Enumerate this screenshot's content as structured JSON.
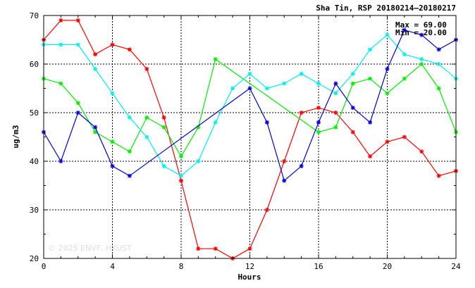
{
  "chart_data": {
    "type": "line",
    "title": "Sha Tin, RSP 20180214–20180217",
    "xlabel": "Hours",
    "ylabel": "ug/m3",
    "xlim": [
      0,
      24
    ],
    "ylim": [
      20,
      70
    ],
    "xticks": [
      0,
      4,
      8,
      12,
      16,
      20,
      24
    ],
    "yticks": [
      20,
      30,
      40,
      50,
      60,
      70
    ],
    "grid": true,
    "stats": {
      "max": "Max = 69.00",
      "min": "Min = 20.00"
    },
    "watermark": "© 2025  ENVF, HKUST",
    "series": [
      {
        "color": "#ff0000",
        "x": [
          0,
          1,
          2,
          3,
          4,
          5,
          6,
          7,
          8,
          9,
          10,
          11,
          12,
          13,
          14,
          15,
          16,
          17,
          18,
          19,
          20,
          21,
          22,
          23,
          24
        ],
        "values": [
          65,
          69,
          69,
          62,
          64,
          63,
          59,
          49,
          36,
          22,
          22,
          20,
          22,
          30,
          40,
          50,
          51,
          50,
          46,
          41,
          44,
          45,
          42,
          37,
          38
        ]
      },
      {
        "color": "#00ee00",
        "x": [
          0,
          1,
          2,
          3,
          4,
          5,
          6,
          7,
          8,
          9,
          10,
          16,
          17,
          18,
          19,
          20,
          21,
          22,
          23,
          24
        ],
        "values": [
          57,
          56,
          52,
          46,
          44,
          42,
          49,
          47,
          41,
          47,
          61,
          46,
          47,
          56,
          57,
          54,
          57,
          60,
          55,
          46
        ]
      },
      {
        "color": "#00eeee",
        "x": [
          0,
          1,
          2,
          3,
          4,
          5,
          6,
          7,
          8,
          9,
          10,
          11,
          12,
          13,
          14,
          15,
          16,
          17,
          18,
          19,
          20,
          21,
          22,
          23,
          24
        ],
        "values": [
          64,
          64,
          64,
          59,
          54,
          49,
          45,
          39,
          37,
          40,
          48,
          55,
          58,
          55,
          56,
          58,
          56,
          54,
          58,
          63,
          66,
          62,
          61,
          60,
          57
        ]
      },
      {
        "color": "#0000dd",
        "x": [
          0,
          1,
          2,
          3,
          4,
          5,
          12,
          13,
          14,
          15,
          16,
          17,
          18,
          19,
          20,
          21,
          22,
          23,
          24
        ],
        "values": [
          46,
          40,
          50,
          47,
          39,
          37,
          55,
          48,
          36,
          39,
          48,
          56,
          51,
          48,
          59,
          67,
          66,
          63,
          65
        ]
      }
    ]
  }
}
